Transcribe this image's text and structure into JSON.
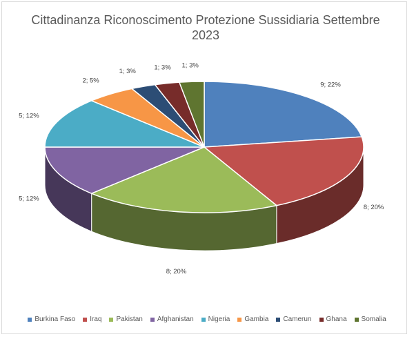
{
  "chart_data": {
    "type": "pie",
    "style": "3d",
    "title_line1": "Cittadinanza Riconoscimento Protezione Sussidiaria Settembre",
    "title_line2": "2023",
    "legend_position": "bottom",
    "slices": [
      {
        "label": "Burkina Faso",
        "value": 9,
        "percent": "22%",
        "color": "#4f81bd"
      },
      {
        "label": "Iraq",
        "value": 8,
        "percent": "20%",
        "color": "#c0504d"
      },
      {
        "label": "Pakistan",
        "value": 8,
        "percent": "20%",
        "color": "#9bbb59"
      },
      {
        "label": "Afghanistan",
        "value": 5,
        "percent": "12%",
        "color": "#8064a2"
      },
      {
        "label": "Nigeria",
        "value": 5,
        "percent": "12%",
        "color": "#4bacc6"
      },
      {
        "label": "Gambia",
        "value": 2,
        "percent": "5%",
        "color": "#f79646"
      },
      {
        "label": "Camerun",
        "value": 1,
        "percent": "3%",
        "color": "#2c4d75"
      },
      {
        "label": "Ghana",
        "value": 1,
        "percent": "3%",
        "color": "#772c2a"
      },
      {
        "label": "Somalia",
        "value": 1,
        "percent": "3%",
        "color": "#5f7530"
      }
    ]
  }
}
